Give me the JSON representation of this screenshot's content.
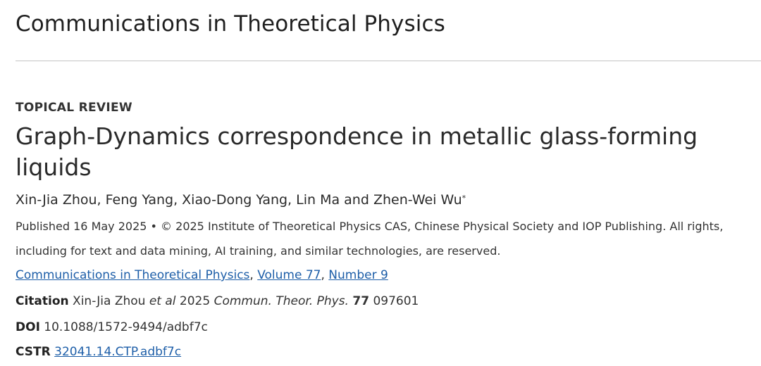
{
  "journal": {
    "name": "Communications in Theoretical Physics"
  },
  "article": {
    "type": "TOPICAL REVIEW",
    "title": "Graph-Dynamics correspondence in metallic glass-forming liquids",
    "authors_text": "Xin-Jia Zhou, Feng Yang, Xiao-Dong Yang, Lin Ma and Zhen-Wei Wu",
    "corresponding_marker": "*",
    "published": "Published 16 May 2025 • © 2025 Institute of Theoretical Physics CAS, Chinese Physical Society and IOP Publishing. All rights, including for text and data mining, AI training, and similar technologies, are reserved."
  },
  "links": {
    "journal": "Communications in Theoretical Physics",
    "volume": "Volume 77",
    "number": "Number 9",
    "separator": ", "
  },
  "citation": {
    "label": "Citation",
    "authors": "Xin-Jia Zhou",
    "et_al": "et al",
    "year": "2025",
    "journal_abbrev": "Commun. Theor. Phys.",
    "volume": "77",
    "article_number": "097601"
  },
  "doi": {
    "label": "DOI",
    "value": "10.1088/1572-9494/adbf7c"
  },
  "cstr": {
    "label": "CSTR",
    "value": "32041.14.CTP.adbf7c"
  }
}
